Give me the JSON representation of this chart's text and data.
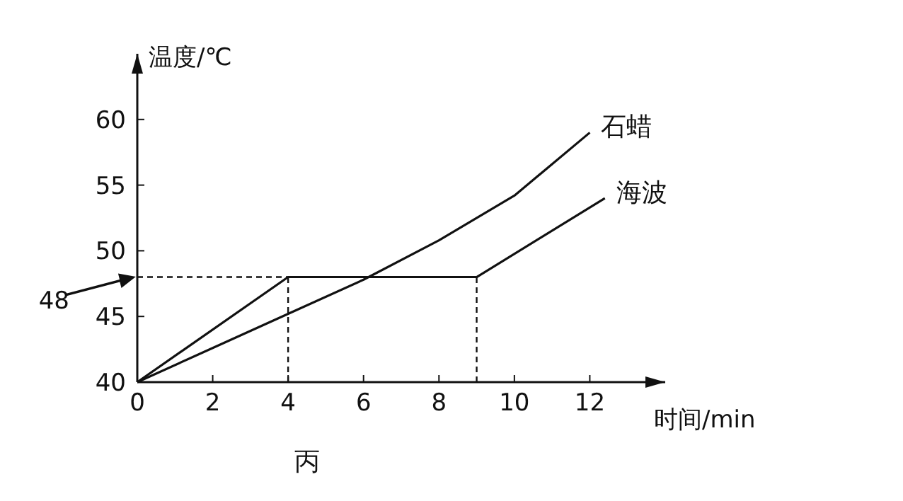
{
  "chart_data": {
    "type": "line",
    "xlabel": "时间/min",
    "ylabel": "温度/℃",
    "xlim": [
      0,
      14
    ],
    "ylim": [
      40,
      65
    ],
    "xticks": [
      0,
      2,
      4,
      6,
      8,
      10,
      12
    ],
    "yticks": [
      40,
      45,
      50,
      55,
      60
    ],
    "grid": false,
    "marker": "none",
    "line_style": "solid",
    "color": "#111111",
    "series": [
      {
        "name": "石蜡",
        "x": [
          0,
          2,
          4,
          6,
          8,
          10,
          12
        ],
        "values": [
          40,
          42.6,
          45.2,
          47.8,
          50.8,
          54.2,
          59
        ]
      },
      {
        "name": "海波",
        "x": [
          0,
          4,
          9,
          12.4
        ],
        "values": [
          40,
          48,
          48,
          54
        ]
      }
    ],
    "ref_lines": [
      {
        "axis": "y",
        "value": 48,
        "label": "48",
        "line_style": "dashed"
      },
      {
        "axis": "x",
        "value": 4,
        "line_style": "dashed"
      },
      {
        "axis": "x",
        "value": 9,
        "line_style": "dashed"
      }
    ],
    "annotations": [
      "丙"
    ]
  }
}
